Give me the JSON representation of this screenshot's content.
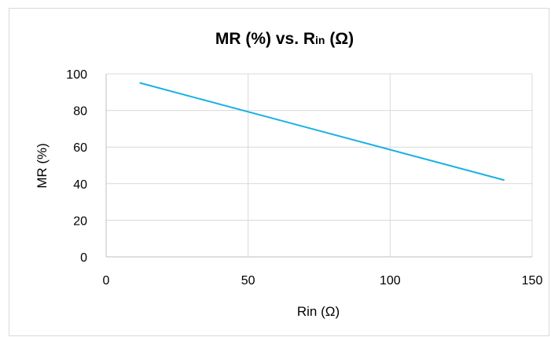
{
  "chart_data": {
    "type": "line",
    "title": {
      "main": "MR (%) vs. R",
      "sub": "in",
      "tail": " (Ω)"
    },
    "xlabel": "Rin (Ω)",
    "ylabel": "MR (%)",
    "xlim": [
      0,
      150
    ],
    "ylim": [
      0,
      100
    ],
    "x_ticks": [
      "0",
      "50",
      "100",
      "150"
    ],
    "y_ticks": [
      "0",
      "20",
      "40",
      "60",
      "80",
      "100"
    ],
    "grid": true,
    "legend": "none",
    "series": [
      {
        "color": "#1ab0e4",
        "points": [
          {
            "x": 12,
            "y": 95
          },
          {
            "x": 140,
            "y": 42
          }
        ]
      }
    ]
  }
}
